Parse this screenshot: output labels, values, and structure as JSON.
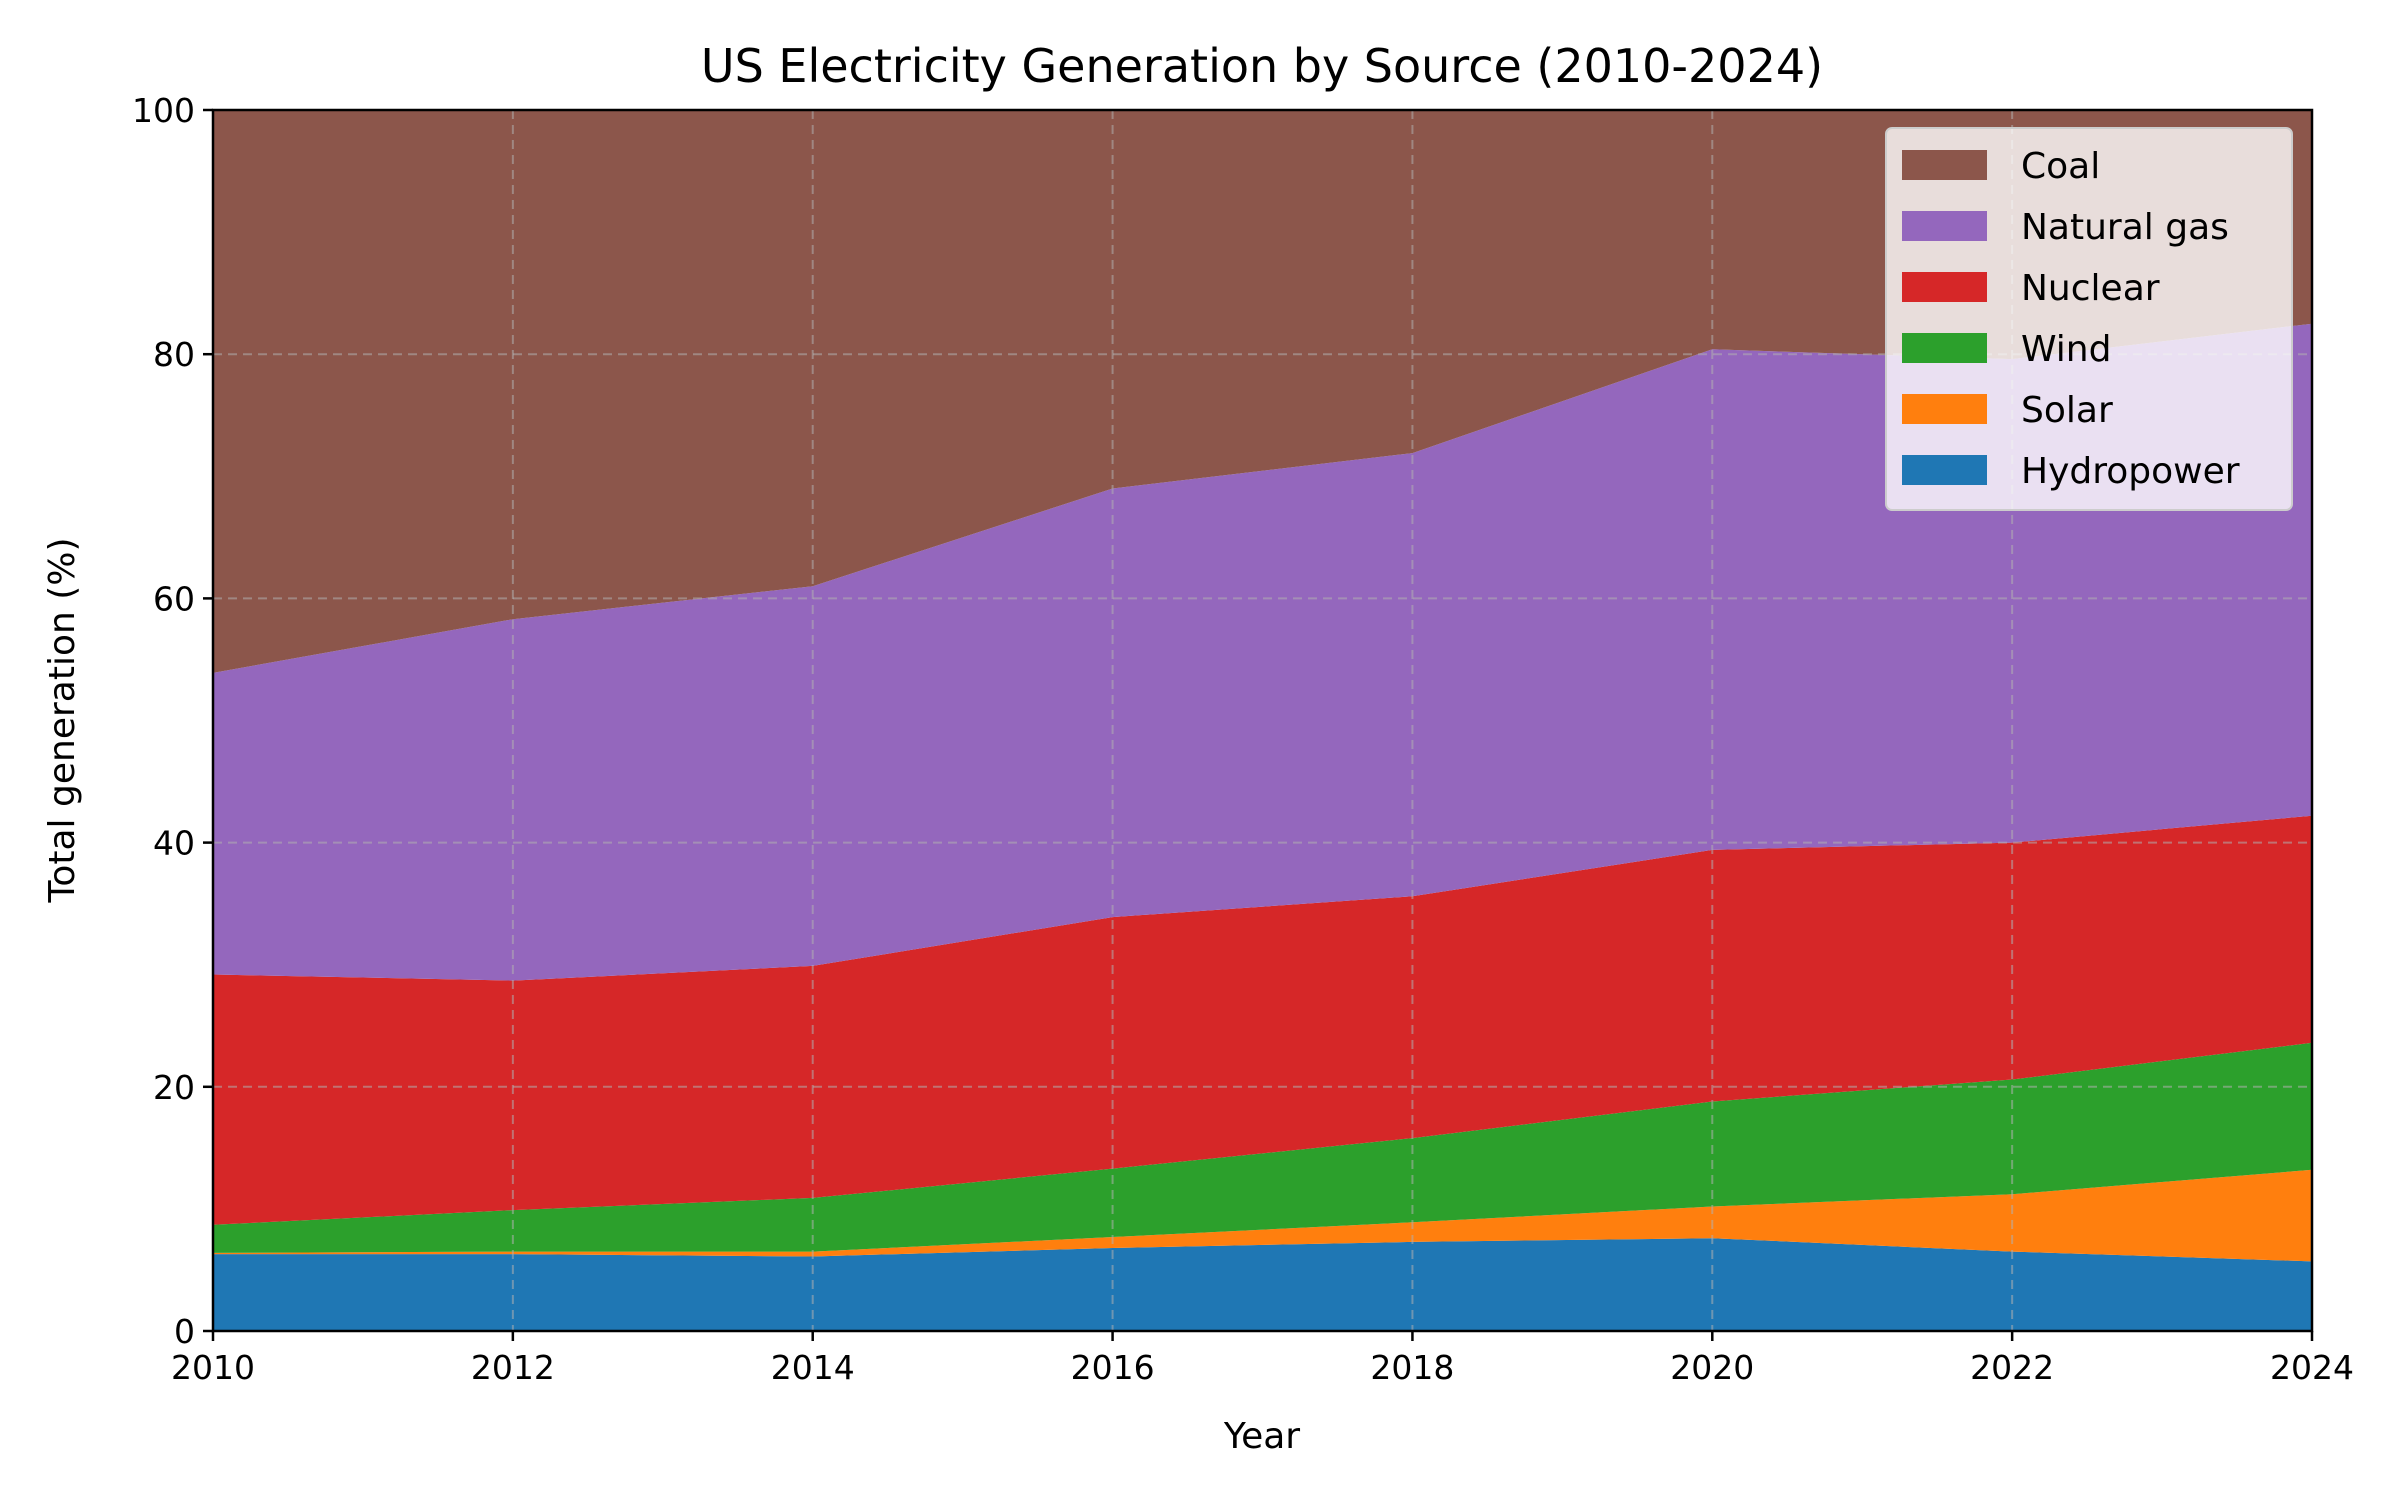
{
  "chart_data": {
    "type": "area",
    "stacked": true,
    "title": "US Electricity Generation by Source (2010-2024)",
    "xlabel": "Year",
    "ylabel": "Total generation (%)",
    "xlim": [
      2010,
      2024
    ],
    "ylim": [
      0,
      100
    ],
    "x": [
      2010,
      2012,
      2014,
      2016,
      2018,
      2020,
      2022,
      2024
    ],
    "x_ticks": [
      "2010",
      "2012",
      "2014",
      "2016",
      "2018",
      "2020",
      "2022",
      "2024"
    ],
    "y_ticks": [
      "0",
      "20",
      "40",
      "60",
      "80",
      "100"
    ],
    "grid": true,
    "legend_position": "top-right",
    "series": [
      {
        "name": "Hydropower",
        "color": "#1f77b4",
        "values": [
          6.3,
          6.3,
          6.1,
          6.8,
          7.3,
          7.6,
          6.5,
          5.7
        ]
      },
      {
        "name": "Solar",
        "color": "#ff7f0e",
        "values": [
          0.1,
          0.2,
          0.4,
          0.9,
          1.6,
          2.6,
          4.7,
          7.5
        ]
      },
      {
        "name": "Wind",
        "color": "#2ca02c",
        "values": [
          2.3,
          3.4,
          4.4,
          5.6,
          6.9,
          8.6,
          9.4,
          10.4
        ]
      },
      {
        "name": "Nuclear",
        "color": "#d62728",
        "values": [
          20.5,
          18.8,
          19.0,
          20.6,
          19.8,
          20.6,
          19.4,
          18.6
        ]
      },
      {
        "name": "Natural gas",
        "color": "#9467bd",
        "values": [
          24.7,
          29.6,
          31.1,
          35.1,
          36.3,
          41.0,
          39.6,
          40.3
        ]
      },
      {
        "name": "Coal",
        "color": "#8c564b",
        "values": [
          46.1,
          41.7,
          39.0,
          31.0,
          28.1,
          19.6,
          20.4,
          17.5
        ]
      }
    ],
    "legend_order": [
      "Coal",
      "Natural gas",
      "Nuclear",
      "Wind",
      "Solar",
      "Hydropower"
    ]
  }
}
